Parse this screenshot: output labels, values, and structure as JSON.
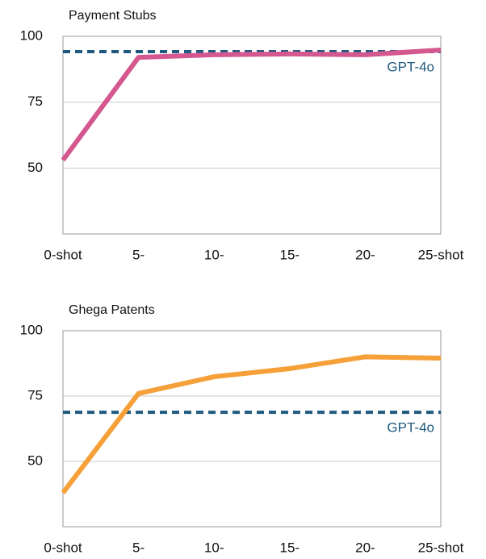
{
  "chart_data": [
    {
      "type": "line",
      "title": "Payment Stubs",
      "categories": [
        "0-shot",
        "5-",
        "10-",
        "15-",
        "20-",
        "25-shot"
      ],
      "values": [
        53,
        92,
        93,
        93.3,
        93,
        94.8
      ],
      "color": "#d4588f",
      "ylim": [
        25,
        100
      ],
      "yticks": [
        50,
        75,
        100
      ],
      "grid": true,
      "reference": {
        "label": "GPT-4o",
        "value": 94.2,
        "color": "#1f5a7e"
      }
    },
    {
      "type": "line",
      "title": "Ghega Patents",
      "categories": [
        "0-shot",
        "5-",
        "10-",
        "15-",
        "20-",
        "25-shot"
      ],
      "values": [
        38,
        76,
        82.4,
        85.5,
        90,
        89.5
      ],
      "color": "#f5a038",
      "ylim": [
        25,
        100
      ],
      "yticks": [
        50,
        75,
        100
      ],
      "grid": true,
      "reference": {
        "label": "GPT-4o",
        "value": 68.8,
        "color": "#1f5a7e"
      }
    }
  ]
}
